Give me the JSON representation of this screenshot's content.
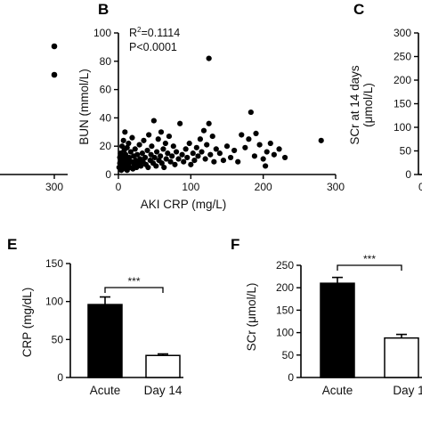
{
  "panel_a": {
    "xticks": [
      "300"
    ]
  },
  "panel_b": {
    "letter": "B",
    "r2_symbol": "R",
    "r2_sup": "2",
    "r2_value": "=0.1114",
    "p_value": "P<0.0001",
    "xlabel": "AKI CRP (mg/L)",
    "ylabel": "BUN (mmol/L)"
  },
  "panel_c": {
    "letter": "C",
    "ylabel_line1": "SCr at 14 days",
    "ylabel_line2": "(μmol/L)"
  },
  "panel_e": {
    "letter": "E",
    "ylabel": "CRP (mg/dL)"
  },
  "panel_f": {
    "letter": "F",
    "ylabel": "SCr (μmol/L)"
  },
  "colors": {
    "axis": "#000000",
    "marker": "#000000",
    "bar_acute": "#000000",
    "bar_day14": "#ffffff"
  },
  "chart_data": [
    {
      "panel": "A",
      "type": "scatter",
      "xticks": [
        "300"
      ],
      "points": [
        {
          "x": 300,
          "y": 90
        },
        {
          "x": 300,
          "y": 70
        }
      ]
    },
    {
      "panel": "B",
      "type": "scatter",
      "xlabel": "AKI CRP (mg/L)",
      "ylabel": "BUN (mmol/L)",
      "xlim": [
        0,
        300
      ],
      "ylim": [
        0,
        100
      ],
      "xticks": [
        "0",
        "100",
        "200",
        "300"
      ],
      "yticks": [
        "0",
        "20",
        "40",
        "60",
        "80",
        "100"
      ],
      "annotations": [
        "R²=0.1114",
        "P<0.0001"
      ],
      "points": [
        {
          "x": 1,
          "y": 5
        },
        {
          "x": 2,
          "y": 8
        },
        {
          "x": 2,
          "y": 12
        },
        {
          "x": 3,
          "y": 6
        },
        {
          "x": 3,
          "y": 15
        },
        {
          "x": 4,
          "y": 3
        },
        {
          "x": 4,
          "y": 10
        },
        {
          "x": 5,
          "y": 7
        },
        {
          "x": 5,
          "y": 20
        },
        {
          "x": 6,
          "y": 4
        },
        {
          "x": 6,
          "y": 13
        },
        {
          "x": 7,
          "y": 9
        },
        {
          "x": 7,
          "y": 24
        },
        {
          "x": 8,
          "y": 6
        },
        {
          "x": 8,
          "y": 17
        },
        {
          "x": 9,
          "y": 11
        },
        {
          "x": 9,
          "y": 30
        },
        {
          "x": 10,
          "y": 5
        },
        {
          "x": 10,
          "y": 14
        },
        {
          "x": 11,
          "y": 8
        },
        {
          "x": 12,
          "y": 19
        },
        {
          "x": 12,
          "y": 3
        },
        {
          "x": 13,
          "y": 10
        },
        {
          "x": 14,
          "y": 22
        },
        {
          "x": 14,
          "y": 7
        },
        {
          "x": 15,
          "y": 12
        },
        {
          "x": 16,
          "y": 5
        },
        {
          "x": 17,
          "y": 16
        },
        {
          "x": 18,
          "y": 9
        },
        {
          "x": 19,
          "y": 26
        },
        {
          "x": 20,
          "y": 4
        },
        {
          "x": 21,
          "y": 13
        },
        {
          "x": 22,
          "y": 7
        },
        {
          "x": 23,
          "y": 18
        },
        {
          "x": 24,
          "y": 10
        },
        {
          "x": 25,
          "y": 5
        },
        {
          "x": 26,
          "y": 14
        },
        {
          "x": 28,
          "y": 8
        },
        {
          "x": 29,
          "y": 21
        },
        {
          "x": 30,
          "y": 11
        },
        {
          "x": 31,
          "y": 6
        },
        {
          "x": 33,
          "y": 15
        },
        {
          "x": 34,
          "y": 9
        },
        {
          "x": 35,
          "y": 24
        },
        {
          "x": 37,
          "y": 12
        },
        {
          "x": 38,
          "y": 7
        },
        {
          "x": 40,
          "y": 17
        },
        {
          "x": 41,
          "y": 5
        },
        {
          "x": 42,
          "y": 28
        },
        {
          "x": 44,
          "y": 10
        },
        {
          "x": 45,
          "y": 14
        },
        {
          "x": 46,
          "y": 20
        },
        {
          "x": 48,
          "y": 8
        },
        {
          "x": 49,
          "y": 38
        },
        {
          "x": 50,
          "y": 12
        },
        {
          "x": 52,
          "y": 6
        },
        {
          "x": 53,
          "y": 16
        },
        {
          "x": 55,
          "y": 25
        },
        {
          "x": 56,
          "y": 10
        },
        {
          "x": 58,
          "y": 13
        },
        {
          "x": 59,
          "y": 30
        },
        {
          "x": 60,
          "y": 8
        },
        {
          "x": 62,
          "y": 18
        },
        {
          "x": 63,
          "y": 5
        },
        {
          "x": 65,
          "y": 22
        },
        {
          "x": 66,
          "y": 11
        },
        {
          "x": 68,
          "y": 15
        },
        {
          "x": 70,
          "y": 27
        },
        {
          "x": 72,
          "y": 9
        },
        {
          "x": 74,
          "y": 13
        },
        {
          "x": 76,
          "y": 20
        },
        {
          "x": 78,
          "y": 7
        },
        {
          "x": 80,
          "y": 16
        },
        {
          "x": 83,
          "y": 11
        },
        {
          "x": 85,
          "y": 36
        },
        {
          "x": 88,
          "y": 14
        },
        {
          "x": 90,
          "y": 9
        },
        {
          "x": 93,
          "y": 18
        },
        {
          "x": 95,
          "y": 12
        },
        {
          "x": 98,
          "y": 22
        },
        {
          "x": 100,
          "y": 7
        },
        {
          "x": 103,
          "y": 15
        },
        {
          "x": 105,
          "y": 10
        },
        {
          "x": 108,
          "y": 19
        },
        {
          "x": 110,
          "y": 13
        },
        {
          "x": 113,
          "y": 25
        },
        {
          "x": 115,
          "y": 16
        },
        {
          "x": 118,
          "y": 31
        },
        {
          "x": 120,
          "y": 11
        },
        {
          "x": 122,
          "y": 21
        },
        {
          "x": 125,
          "y": 36
        },
        {
          "x": 127,
          "y": 14
        },
        {
          "x": 130,
          "y": 27
        },
        {
          "x": 132,
          "y": 9
        },
        {
          "x": 135,
          "y": 18
        },
        {
          "x": 125,
          "y": 82
        },
        {
          "x": 140,
          "y": 15
        },
        {
          "x": 145,
          "y": 10
        },
        {
          "x": 150,
          "y": 20
        },
        {
          "x": 155,
          "y": 12
        },
        {
          "x": 160,
          "y": 17
        },
        {
          "x": 165,
          "y": 9
        },
        {
          "x": 170,
          "y": 28
        },
        {
          "x": 175,
          "y": 19
        },
        {
          "x": 180,
          "y": 25
        },
        {
          "x": 183,
          "y": 44
        },
        {
          "x": 188,
          "y": 13
        },
        {
          "x": 190,
          "y": 29
        },
        {
          "x": 195,
          "y": 21
        },
        {
          "x": 200,
          "y": 11
        },
        {
          "x": 203,
          "y": 6
        },
        {
          "x": 205,
          "y": 16
        },
        {
          "x": 210,
          "y": 22
        },
        {
          "x": 215,
          "y": 14
        },
        {
          "x": 222,
          "y": 18
        },
        {
          "x": 230,
          "y": 12
        },
        {
          "x": 280,
          "y": 24
        }
      ]
    },
    {
      "panel": "C",
      "type": "scatter",
      "ylabel": "SCr at 14 days (μmol/L)",
      "ylim": [
        0,
        300
      ],
      "yticks": [
        "0",
        "50",
        "100",
        "150",
        "200",
        "250",
        "300"
      ],
      "xticks": [
        "0"
      ]
    },
    {
      "panel": "E",
      "type": "bar",
      "ylabel": "CRP (mg/dL)",
      "categories": [
        "Acute",
        "Day 14"
      ],
      "values": [
        96,
        29
      ],
      "errors": [
        10,
        2
      ],
      "ylim": [
        0,
        150
      ],
      "yticks": [
        "0",
        "50",
        "100",
        "150"
      ],
      "significance": "***"
    },
    {
      "panel": "F",
      "type": "bar",
      "ylabel": "SCr (μmol/L)",
      "categories": [
        "Acute",
        "Day 1"
      ],
      "values": [
        210,
        88
      ],
      "errors": [
        13,
        8
      ],
      "ylim": [
        0,
        250
      ],
      "yticks": [
        "0",
        "50",
        "100",
        "150",
        "200",
        "250"
      ],
      "significance": "***"
    }
  ]
}
